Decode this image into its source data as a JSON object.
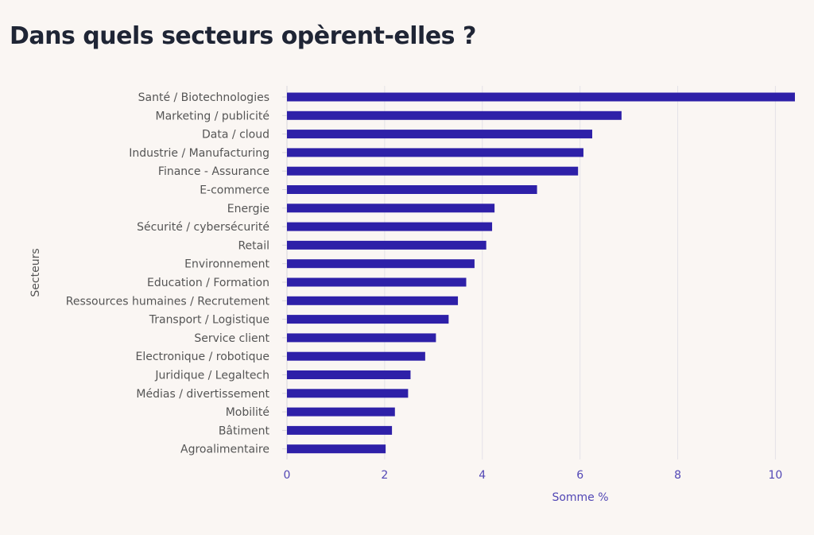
{
  "header": {
    "title": "Dans quels secteurs opèrent-elles ?"
  },
  "colors": {
    "bar": "#2e20a8",
    "grid": "#e4e2e8",
    "axis_text": "#5247b5",
    "label_text": "#555555",
    "title": "#1f2535"
  },
  "chart_data": {
    "type": "bar",
    "orientation": "horizontal",
    "title": "Dans quels secteurs opèrent-elles ?",
    "xlabel": "Somme %",
    "ylabel": "Secteurs",
    "xlim": [
      0,
      10.4
    ],
    "xticks": [
      "0",
      "2",
      "4",
      "6",
      "8",
      "10"
    ],
    "grid": true,
    "categories": [
      "Santé / Biotechnologies",
      "Marketing / publicité",
      "Data / cloud",
      "Industrie / Manufacturing",
      "Finance - Assurance",
      "E-commerce",
      "Energie",
      "Sécurité / cybersécurité",
      "Retail",
      "Environnement",
      "Education / Formation",
      "Ressources humaines / Recrutement",
      "Transport / Logistique",
      "Service client",
      "Electronique / robotique",
      "Juridique / Legaltech",
      "Médias / divertissement",
      "Mobilité",
      "Bâtiment",
      "Agroalimentaire"
    ],
    "values": [
      10.4,
      6.85,
      6.25,
      6.07,
      5.96,
      5.12,
      4.25,
      4.2,
      4.08,
      3.84,
      3.67,
      3.5,
      3.31,
      3.05,
      2.83,
      2.53,
      2.48,
      2.21,
      2.15,
      2.02
    ]
  }
}
